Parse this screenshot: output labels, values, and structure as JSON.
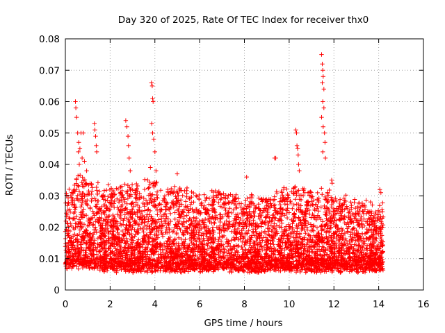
{
  "chart_data": {
    "type": "scatter",
    "title": "Day 320 of 2025, Rate Of TEC Index for receiver thx0",
    "xlabel": "GPS time / hours",
    "ylabel": "ROTI / TECUs",
    "xlim": [
      0,
      16
    ],
    "ylim": [
      0,
      0.08
    ],
    "xticks": [
      0,
      2,
      4,
      6,
      8,
      10,
      12,
      14,
      16
    ],
    "yticks": [
      0,
      0.01,
      0.02,
      0.03,
      0.04,
      0.05,
      0.06,
      0.07,
      0.08
    ],
    "xtick_labels": [
      "0",
      "2",
      "4",
      "6",
      "8",
      "10",
      "12",
      "14",
      "16"
    ],
    "ytick_labels": [
      "0",
      "0.01",
      "0.02",
      "0.03",
      "0.04",
      "0.05",
      "0.06",
      "0.07",
      "0.08"
    ],
    "grid": true,
    "marker": "+",
    "color": "#ff0000",
    "series": [
      {
        "name": "thx0",
        "points": [
          [
            0.45,
            0.06
          ],
          [
            0.47,
            0.058
          ],
          [
            0.5,
            0.055
          ],
          [
            0.55,
            0.05
          ],
          [
            0.6,
            0.047
          ],
          [
            0.65,
            0.045
          ],
          [
            0.7,
            0.05
          ],
          [
            0.8,
            0.05
          ],
          [
            0.75,
            0.042
          ],
          [
            0.58,
            0.044
          ],
          [
            0.62,
            0.04
          ],
          [
            0.85,
            0.041
          ],
          [
            0.95,
            0.038
          ],
          [
            1.3,
            0.053
          ],
          [
            1.32,
            0.051
          ],
          [
            1.35,
            0.049
          ],
          [
            1.38,
            0.046
          ],
          [
            1.4,
            0.044
          ],
          [
            2.7,
            0.054
          ],
          [
            2.75,
            0.052
          ],
          [
            2.8,
            0.049
          ],
          [
            2.82,
            0.046
          ],
          [
            2.85,
            0.042
          ],
          [
            2.9,
            0.038
          ],
          [
            3.85,
            0.066
          ],
          [
            3.88,
            0.065
          ],
          [
            3.9,
            0.061
          ],
          [
            3.92,
            0.06
          ],
          [
            3.86,
            0.053
          ],
          [
            3.9,
            0.05
          ],
          [
            3.95,
            0.048
          ],
          [
            4.0,
            0.044
          ],
          [
            3.8,
            0.039
          ],
          [
            4.05,
            0.038
          ],
          [
            5.0,
            0.037
          ],
          [
            8.1,
            0.036
          ],
          [
            9.35,
            0.042
          ],
          [
            9.4,
            0.042
          ],
          [
            10.3,
            0.051
          ],
          [
            10.33,
            0.05
          ],
          [
            10.35,
            0.046
          ],
          [
            10.38,
            0.045
          ],
          [
            10.4,
            0.043
          ],
          [
            10.42,
            0.04
          ],
          [
            10.45,
            0.038
          ],
          [
            11.45,
            0.075
          ],
          [
            11.48,
            0.072
          ],
          [
            11.5,
            0.07
          ],
          [
            11.52,
            0.068
          ],
          [
            11.48,
            0.066
          ],
          [
            11.55,
            0.064
          ],
          [
            11.5,
            0.06
          ],
          [
            11.55,
            0.058
          ],
          [
            11.45,
            0.055
          ],
          [
            11.52,
            0.052
          ],
          [
            11.58,
            0.05
          ],
          [
            11.6,
            0.047
          ],
          [
            11.5,
            0.044
          ],
          [
            11.62,
            0.042
          ],
          [
            11.9,
            0.035
          ],
          [
            11.92,
            0.034
          ],
          [
            14.05,
            0.032
          ],
          [
            14.1,
            0.031
          ]
        ]
      }
    ],
    "dense_band": {
      "x_range": [
        0.0,
        14.2
      ],
      "count": 5200,
      "envelope": [
        {
          "x": 0,
          "base": 0.004,
          "upper": 0.03
        },
        {
          "x": 0.5,
          "base": 0.004,
          "upper": 0.036
        },
        {
          "x": 1,
          "base": 0.004,
          "upper": 0.035
        },
        {
          "x": 2,
          "base": 0.003,
          "upper": 0.032
        },
        {
          "x": 3,
          "base": 0.003,
          "upper": 0.034
        },
        {
          "x": 4,
          "base": 0.003,
          "upper": 0.034
        },
        {
          "x": 5,
          "base": 0.003,
          "upper": 0.032
        },
        {
          "x": 6,
          "base": 0.003,
          "upper": 0.031
        },
        {
          "x": 7,
          "base": 0.003,
          "upper": 0.031
        },
        {
          "x": 8,
          "base": 0.003,
          "upper": 0.03
        },
        {
          "x": 9,
          "base": 0.003,
          "upper": 0.03
        },
        {
          "x": 10,
          "base": 0.003,
          "upper": 0.033
        },
        {
          "x": 11,
          "base": 0.003,
          "upper": 0.032
        },
        {
          "x": 12,
          "base": 0.003,
          "upper": 0.03
        },
        {
          "x": 13,
          "base": 0.003,
          "upper": 0.028
        },
        {
          "x": 14.2,
          "base": 0.003,
          "upper": 0.027
        }
      ]
    }
  }
}
